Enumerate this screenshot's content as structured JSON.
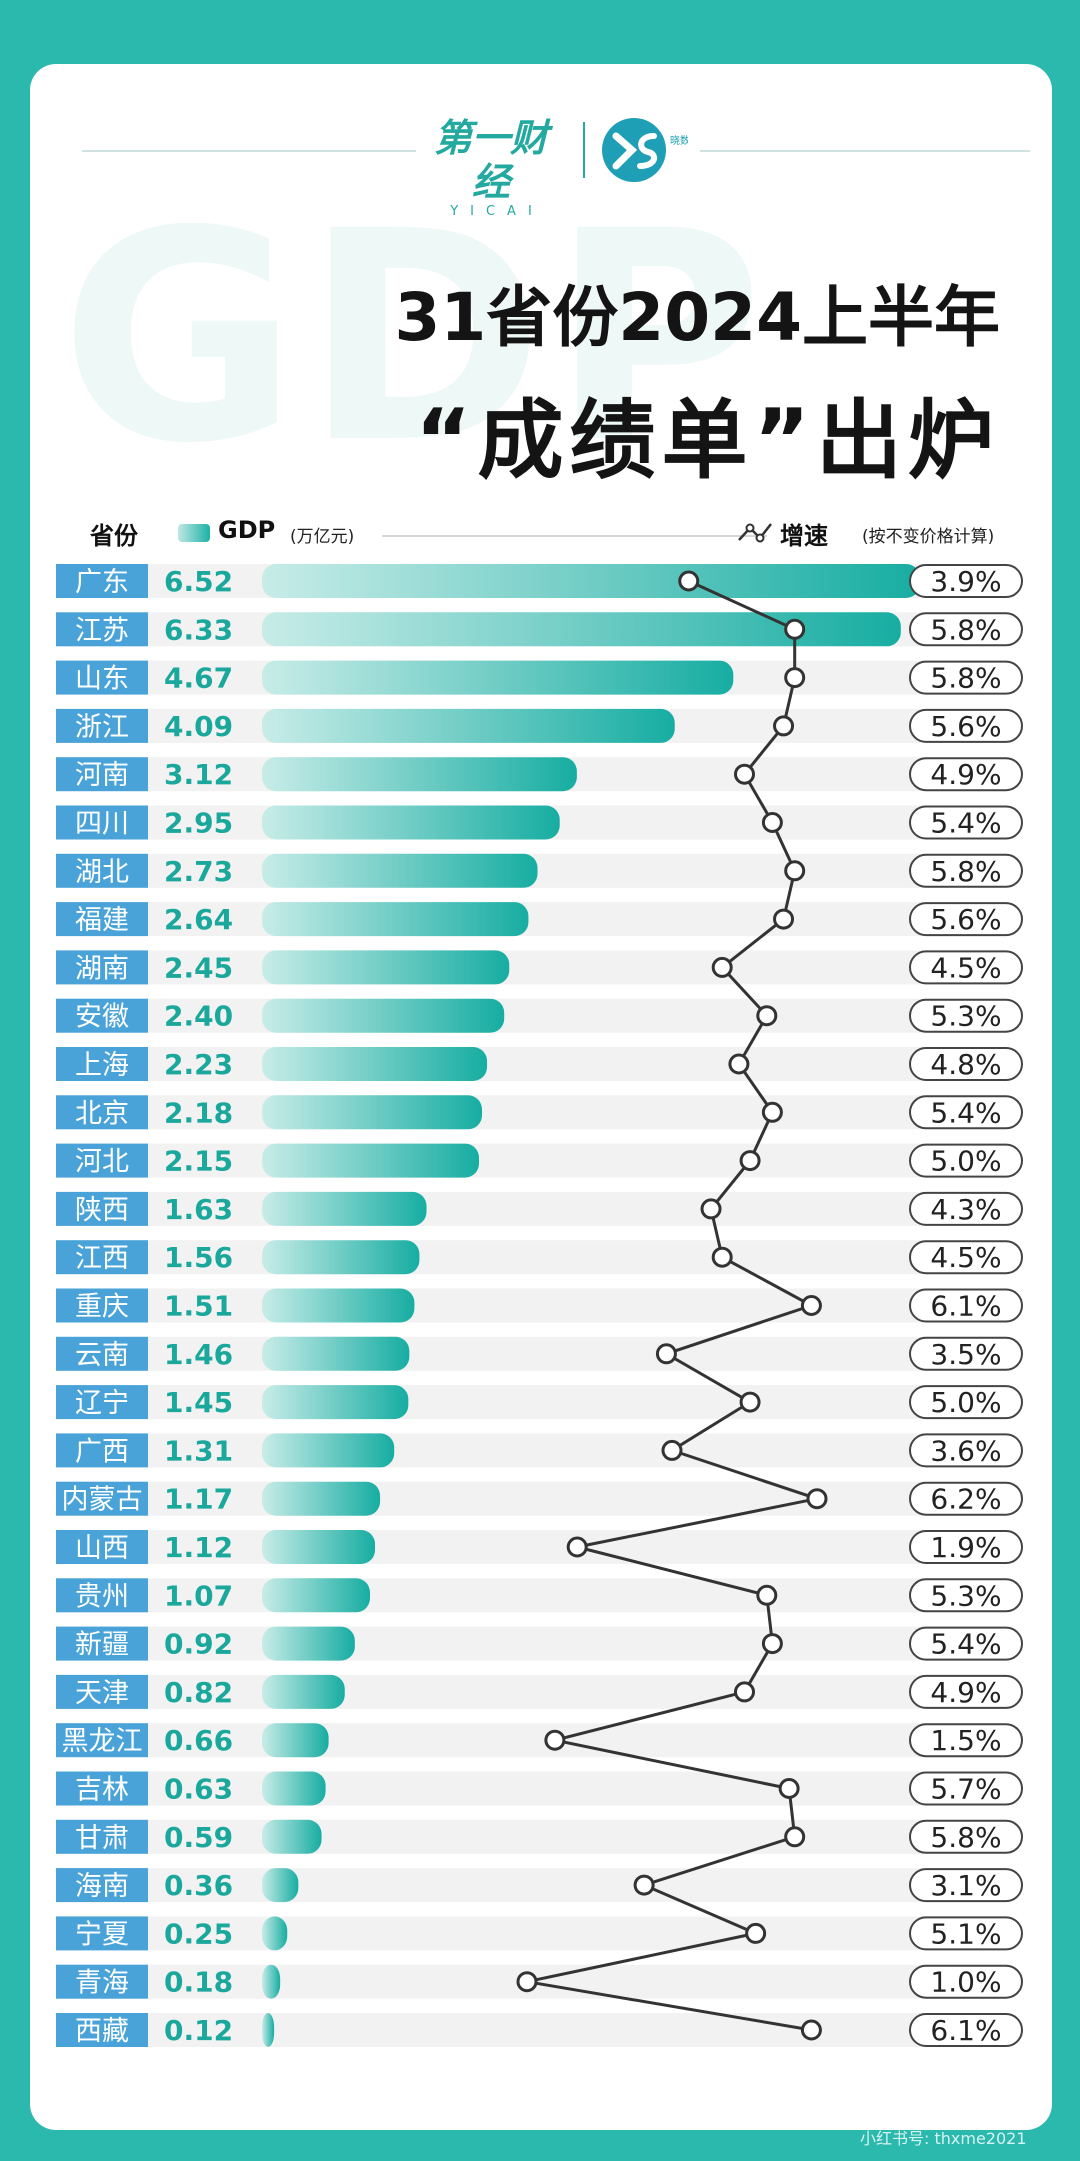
{
  "brand": {
    "yicai_cn": "第一财经",
    "yicai_en": "YICAI",
    "xs_cn": "晓数点"
  },
  "watermark": "GDP",
  "title": {
    "line1": "31省份2024上半年",
    "line2": "“成绩单”出炉"
  },
  "header": {
    "province": "省份",
    "gdp": "GDP",
    "gdp_unit": "(万亿元)",
    "growth": "增速",
    "growth_note": "(按不变价格计算)"
  },
  "colors": {
    "bar_start": "#c4ebe7",
    "bar_end": "#1aae a3",
    "label_bg": "#4aa3d8",
    "row_bg": "#f2f2f2",
    "line": "#333333"
  },
  "chart_data": {
    "type": "bar",
    "categories": [
      "广东",
      "江苏",
      "山东",
      "浙江",
      "河南",
      "四川",
      "湖北",
      "福建",
      "湖南",
      "安徽",
      "上海",
      "北京",
      "河北",
      "陕西",
      "江西",
      "重庆",
      "云南",
      "辽宁",
      "广西",
      "内蒙古",
      "山西",
      "贵州",
      "新疆",
      "天津",
      "黑龙江",
      "吉林",
      "甘肃",
      "海南",
      "宁夏",
      "青海",
      "西藏"
    ],
    "series": [
      {
        "name": "GDP",
        "values": [
          6.52,
          6.33,
          4.67,
          4.09,
          3.12,
          2.95,
          2.73,
          2.64,
          2.45,
          2.4,
          2.23,
          2.18,
          2.15,
          1.63,
          1.56,
          1.51,
          1.46,
          1.45,
          1.31,
          1.17,
          1.12,
          1.07,
          0.92,
          0.82,
          0.66,
          0.63,
          0.59,
          0.36,
          0.25,
          0.18,
          0.12
        ],
        "labels": [
          "6.52",
          "6.33",
          "4.67",
          "4.09",
          "3.12",
          "2.95",
          "2.73",
          "2.64",
          "2.45",
          "2.40",
          "2.23",
          "2.18",
          "2.15",
          "1.63",
          "1.56",
          "1.51",
          "1.46",
          "1.45",
          "1.31",
          "1.17",
          "1.12",
          "1.07",
          "0.92",
          "0.82",
          "0.66",
          "0.63",
          "0.59",
          "0.36",
          "0.25",
          "0.18",
          "0.12"
        ]
      },
      {
        "name": "增速",
        "type": "line",
        "values": [
          3.9,
          5.8,
          5.8,
          5.6,
          4.9,
          5.4,
          5.8,
          5.6,
          4.5,
          5.3,
          4.8,
          5.4,
          5.0,
          4.3,
          4.5,
          6.1,
          3.5,
          5.0,
          3.6,
          6.2,
          1.9,
          5.3,
          5.4,
          4.9,
          1.5,
          5.7,
          5.8,
          3.1,
          5.1,
          1.0,
          6.1
        ],
        "labels": [
          "3.9%",
          "5.8%",
          "5.8%",
          "5.6%",
          "4.9%",
          "5.4%",
          "5.8%",
          "5.6%",
          "4.5%",
          "5.3%",
          "4.8%",
          "5.4%",
          "5.0%",
          "4.3%",
          "4.5%",
          "6.1%",
          "3.5%",
          "5.0%",
          "3.6%",
          "6.2%",
          "1.9%",
          "5.3%",
          "5.4%",
          "4.9%",
          "1.5%",
          "5.7%",
          "5.8%",
          "3.1%",
          "5.1%",
          "1.0%",
          "6.1%"
        ]
      }
    ],
    "orientation": "horizontal",
    "gdp_max": 6.52,
    "growth_range": [
      1.0,
      6.2
    ],
    "legend": "top"
  },
  "footer_watermark": "小红书号: thxme2021"
}
